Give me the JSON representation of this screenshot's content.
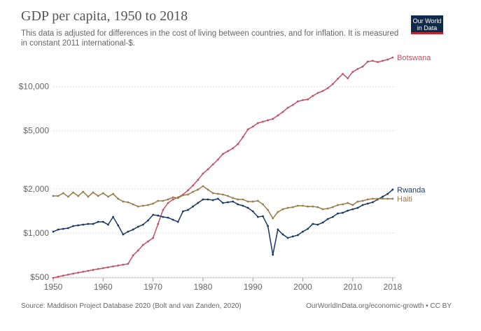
{
  "title": "GDP per capita, 1950 to 2018",
  "subtitle": "This data is adjusted for differences in the cost of living between countries, and for inflation. It is measured in constant 2011 international-$.",
  "logo_text": "Our World in Data",
  "footer": {
    "source": "Source: Maddison Project Database 2020 (Bolt and van Zanden, 2020)",
    "link": "OurWorldInData.org/economic-growth • CC BY"
  },
  "chart_data": {
    "type": "line",
    "title": "GDP per capita, 1950 to 2018",
    "yscale": "log",
    "ylim": [
      500,
      16000
    ],
    "xlim": [
      1950,
      2018
    ],
    "grid": "horizontal dotted",
    "legend": "labels at line ends (right)",
    "yticks": [
      {
        "v": 500,
        "label": "$500"
      },
      {
        "v": 1000,
        "label": "$1,000"
      },
      {
        "v": 2000,
        "label": "$2,000"
      },
      {
        "v": 5000,
        "label": "$5,000"
      },
      {
        "v": 10000,
        "label": "$10,000"
      }
    ],
    "xticks": [
      1950,
      1960,
      1970,
      1980,
      1990,
      2000,
      2010,
      2018
    ],
    "x_start": 1950,
    "series": [
      {
        "name": "Botswana",
        "color": "#c15065",
        "values": [
          494,
          503,
          512,
          520,
          528,
          536,
          544,
          552,
          560,
          568,
          576,
          584,
          592,
          600,
          608,
          616,
          703,
          760,
          829,
          876,
          926,
          1154,
          1438,
          1605,
          1696,
          1752,
          1832,
          1957,
          2113,
          2308,
          2548,
          2723,
          2939,
          3175,
          3468,
          3625,
          3789,
          4050,
          4520,
          5100,
          5330,
          5630,
          5760,
          5890,
          6020,
          6360,
          6710,
          7170,
          7490,
          7920,
          8090,
          8180,
          8640,
          9040,
          9330,
          9760,
          10400,
          11300,
          12200,
          11400,
          12600,
          13200,
          13700,
          14800,
          15000,
          14700,
          15000,
          15300,
          15800
        ]
      },
      {
        "name": "Rwanda",
        "color": "#18375f",
        "values": [
          1022,
          1056,
          1068,
          1080,
          1116,
          1129,
          1141,
          1154,
          1154,
          1192,
          1192,
          1141,
          1288,
          1129,
          978,
          1022,
          1056,
          1104,
          1141,
          1219,
          1331,
          1316,
          1288,
          1274,
          1232,
          1192,
          1406,
          1438,
          1518,
          1605,
          1696,
          1696,
          1677,
          1715,
          1605,
          1623,
          1641,
          1570,
          1536,
          1486,
          1406,
          1288,
          1302,
          1116,
          711,
          1056,
          978,
          926,
          947,
          968,
          1022,
          1068,
          1154,
          1141,
          1179,
          1246,
          1288,
          1360,
          1375,
          1422,
          1454,
          1486,
          1553,
          1587,
          1623,
          1696,
          1771,
          1851,
          1979
        ]
      },
      {
        "name": "Haiti",
        "color": "#9a7b4a",
        "values": [
          1791,
          1791,
          1873,
          1771,
          1893,
          1791,
          1914,
          1771,
          1893,
          1791,
          1873,
          1771,
          1851,
          1715,
          1641,
          1623,
          1570,
          1518,
          1536,
          1553,
          1587,
          1659,
          1659,
          1696,
          1752,
          1733,
          1811,
          1832,
          1914,
          1979,
          2090,
          1979,
          1873,
          1851,
          1832,
          1791,
          1733,
          1696,
          1696,
          1641,
          1641,
          1659,
          1570,
          1438,
          1260,
          1391,
          1454,
          1486,
          1503,
          1536,
          1536,
          1518,
          1518,
          1503,
          1454,
          1470,
          1503,
          1553,
          1570,
          1605,
          1553,
          1641,
          1659,
          1696,
          1715,
          1715,
          1715,
          1715,
          1715
        ]
      }
    ]
  }
}
